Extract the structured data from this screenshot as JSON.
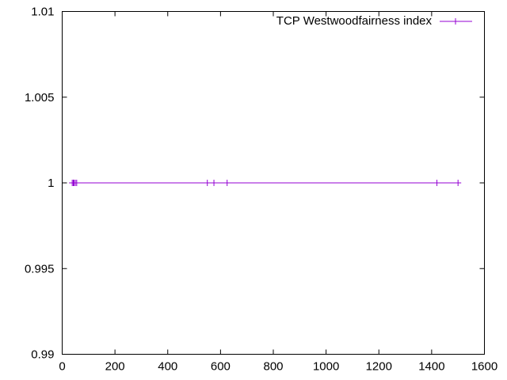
{
  "chart_data": {
    "type": "line",
    "title": "",
    "xlabel": "",
    "ylabel": "",
    "xlim": [
      0,
      1600
    ],
    "ylim": [
      0.99,
      1.01
    ],
    "x_ticks": [
      0,
      200,
      400,
      600,
      800,
      1000,
      1200,
      1400,
      1600
    ],
    "x_tick_labels": [
      "0",
      "200",
      "400",
      "600",
      "800",
      "1000",
      "1200",
      "1400",
      "1600"
    ],
    "y_ticks": [
      0.99,
      0.995,
      1,
      1.005,
      1.01
    ],
    "y_tick_labels": [
      "0.99",
      "0.995",
      "1",
      "1.005",
      "1.01"
    ],
    "grid": false,
    "legend_position": "top-right",
    "series": [
      {
        "name": "TCP Westwoodfairness index",
        "color": "#9400d3",
        "marker": "plus",
        "x": [
          38,
          42,
          45,
          50,
          55,
          550,
          575,
          625,
          1420,
          1500
        ],
        "y": [
          1,
          1,
          1,
          1,
          1,
          1,
          1,
          1,
          1,
          1
        ]
      }
    ]
  }
}
